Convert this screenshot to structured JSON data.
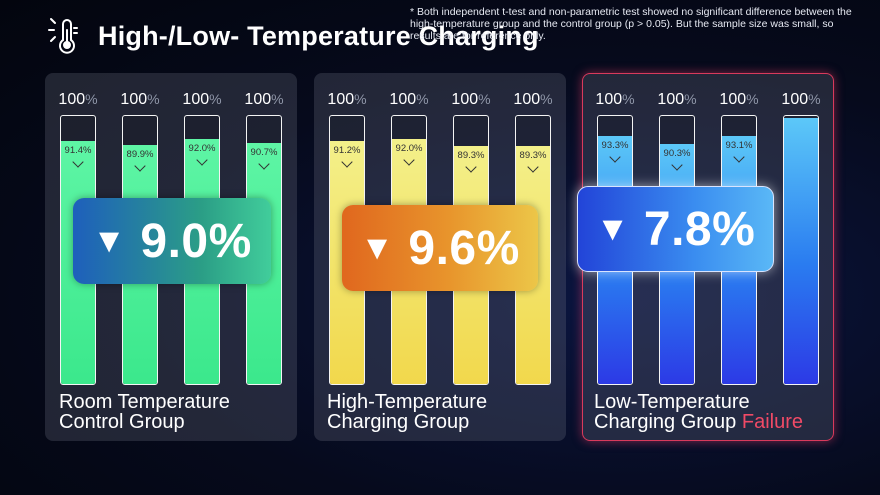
{
  "title": "High-/Low- Temperature Charging",
  "footnote": "* Both independent t-test and non-parametric test showed no significant difference between the high-temperature group and the control group (p > 0.05). But the sample size was small, so results are for reference only.",
  "colors": {
    "green": "#3be88c",
    "yellow": "#f2d84c",
    "blue": "#2a7cf0",
    "failure": "#f04a66"
  },
  "chart_data": {
    "type": "bar",
    "title": "High-/Low- Temperature Charging",
    "ylim": [
      0,
      100
    ],
    "full_label": "100",
    "unit": "%",
    "groups": [
      {
        "name": "Room Temperature Control Group",
        "label_line1": "Room Temperature",
        "label_line2": "Control Group",
        "values": [
          91.4,
          89.9,
          92.0,
          90.7
        ],
        "value_labels": [
          "91.4%",
          "89.9%",
          "92.0%",
          "90.7%"
        ],
        "decline": "9.0%",
        "color": "green",
        "failure": ""
      },
      {
        "name": "High-Temperature Charging Group",
        "label_line1": "High-Temperature",
        "label_line2": "Charging Group",
        "values": [
          91.2,
          92.0,
          89.3,
          89.3
        ],
        "value_labels": [
          "91.2%",
          "92.0%",
          "89.3%",
          "89.3%"
        ],
        "decline": "9.6%",
        "color": "yellow",
        "failure": ""
      },
      {
        "name": "Low-Temperature Charging Group",
        "label_line1": "Low-Temperature",
        "label_line2": "Charging Group",
        "values": [
          93.3,
          90.3,
          93.1,
          100
        ],
        "value_labels": [
          "93.3%",
          "90.3%",
          "93.1%",
          ""
        ],
        "decline": "7.8%",
        "color": "blue",
        "failure": "Failure"
      }
    ]
  }
}
